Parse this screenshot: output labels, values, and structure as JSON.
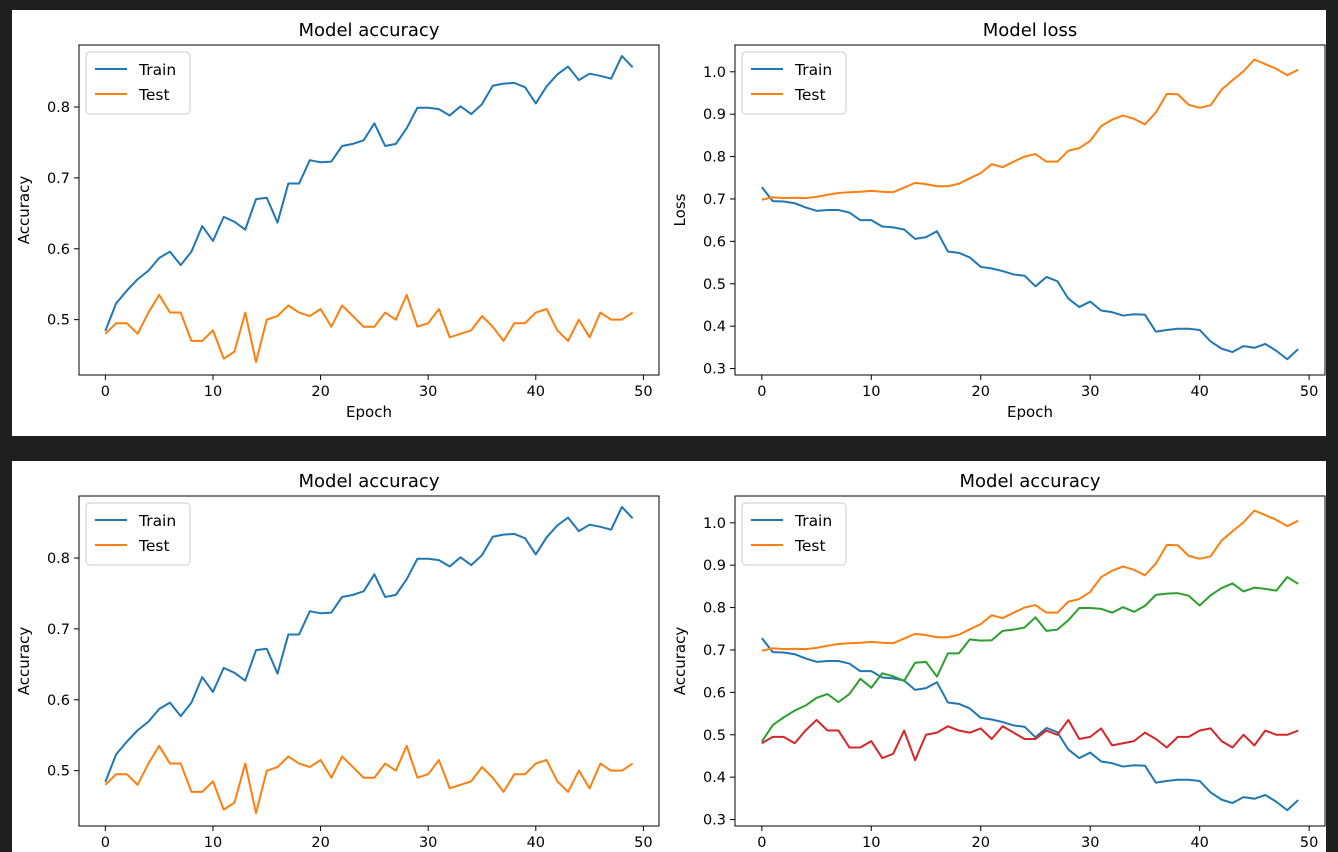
{
  "figures": [
    {
      "name": "figure-top",
      "charts": [
        0,
        1
      ]
    },
    {
      "name": "figure-bottom",
      "charts": [
        2,
        3
      ]
    }
  ],
  "series_colors": {
    "blue": "#1f77b4",
    "orange": "#ff7f0e",
    "green": "#2ca02c",
    "red": "#d62728"
  },
  "chart_data": [
    {
      "type": "line",
      "title": "Model accuracy",
      "xlabel": "Epoch",
      "ylabel": "Accuracy",
      "xlim": [
        -2.45,
        51.45
      ],
      "ylim": [
        0.4219,
        0.8875
      ],
      "xticks": [
        0,
        10,
        20,
        30,
        40,
        50
      ],
      "yticks": [
        0.5,
        0.6,
        0.7,
        0.8
      ],
      "legend": "top-left",
      "grid": false,
      "series": [
        {
          "name": "Train",
          "color": "#1f77b4",
          "values": [
            0.484,
            0.523,
            0.541,
            0.557,
            0.569,
            0.587,
            0.596,
            0.577,
            0.596,
            0.632,
            0.611,
            0.645,
            0.638,
            0.627,
            0.67,
            0.672,
            0.637,
            0.692,
            0.692,
            0.725,
            0.722,
            0.723,
            0.745,
            0.748,
            0.753,
            0.777,
            0.745,
            0.748,
            0.77,
            0.799,
            0.799,
            0.797,
            0.788,
            0.801,
            0.79,
            0.804,
            0.83,
            0.833,
            0.834,
            0.828,
            0.805,
            0.829,
            0.846,
            0.857,
            0.838,
            0.847,
            0.844,
            0.84,
            0.872,
            0.856
          ]
        },
        {
          "name": "Test",
          "color": "#ff7f0e",
          "values": [
            0.48,
            0.495,
            0.495,
            0.48,
            0.51,
            0.535,
            0.51,
            0.51,
            0.47,
            0.47,
            0.485,
            0.445,
            0.455,
            0.51,
            0.44,
            0.5,
            0.505,
            0.52,
            0.51,
            0.505,
            0.515,
            0.49,
            0.52,
            0.505,
            0.49,
            0.49,
            0.51,
            0.5,
            0.535,
            0.49,
            0.495,
            0.515,
            0.475,
            0.48,
            0.485,
            0.505,
            0.49,
            0.47,
            0.495,
            0.495,
            0.51,
            0.515,
            0.485,
            0.47,
            0.5,
            0.475,
            0.51,
            0.5,
            0.5,
            0.51
          ]
        }
      ]
    },
    {
      "type": "line",
      "title": "Model loss",
      "xlabel": "Epoch",
      "ylabel": "Loss",
      "xlim": [
        -2.45,
        51.45
      ],
      "ylim": [
        0.2848,
        1.0632
      ],
      "xticks": [
        0,
        10,
        20,
        30,
        40,
        50
      ],
      "yticks": [
        0.3,
        0.4,
        0.5,
        0.6,
        0.7,
        0.8,
        0.9,
        1.0
      ],
      "legend": "top-left",
      "grid": false,
      "series": [
        {
          "name": "Train",
          "color": "#1f77b4",
          "values": [
            0.728,
            0.695,
            0.694,
            0.69,
            0.68,
            0.672,
            0.674,
            0.674,
            0.668,
            0.65,
            0.65,
            0.635,
            0.633,
            0.628,
            0.606,
            0.61,
            0.624,
            0.576,
            0.573,
            0.562,
            0.54,
            0.536,
            0.53,
            0.522,
            0.519,
            0.494,
            0.516,
            0.506,
            0.465,
            0.445,
            0.458,
            0.437,
            0.433,
            0.425,
            0.428,
            0.427,
            0.387,
            0.391,
            0.394,
            0.394,
            0.391,
            0.364,
            0.347,
            0.339,
            0.353,
            0.349,
            0.358,
            0.342,
            0.322,
            0.346
          ]
        },
        {
          "name": "Test",
          "color": "#ff7f0e",
          "values": [
            0.698,
            0.704,
            0.702,
            0.703,
            0.702,
            0.705,
            0.71,
            0.714,
            0.716,
            0.717,
            0.719,
            0.717,
            0.716,
            0.727,
            0.738,
            0.735,
            0.73,
            0.73,
            0.736,
            0.749,
            0.761,
            0.782,
            0.775,
            0.788,
            0.8,
            0.806,
            0.788,
            0.788,
            0.814,
            0.82,
            0.837,
            0.872,
            0.887,
            0.897,
            0.889,
            0.876,
            0.904,
            0.948,
            0.947,
            0.922,
            0.915,
            0.921,
            0.958,
            0.98,
            1.001,
            1.029,
            1.018,
            1.007,
            0.992,
            1.005
          ]
        }
      ]
    },
    {
      "type": "line",
      "title": "Model accuracy",
      "xlabel": "",
      "ylabel": "Accuracy",
      "xlim": [
        -2.45,
        51.45
      ],
      "ylim": [
        0.4219,
        0.8875
      ],
      "xticks": [
        0,
        10,
        20,
        30,
        40,
        50
      ],
      "yticks": [
        0.5,
        0.6,
        0.7,
        0.8
      ],
      "legend": "top-left",
      "grid": false,
      "series": [
        {
          "name": "Train",
          "color": "#1f77b4",
          "values": [
            0.484,
            0.523,
            0.541,
            0.557,
            0.569,
            0.587,
            0.596,
            0.577,
            0.596,
            0.632,
            0.611,
            0.645,
            0.638,
            0.627,
            0.67,
            0.672,
            0.637,
            0.692,
            0.692,
            0.725,
            0.722,
            0.723,
            0.745,
            0.748,
            0.753,
            0.777,
            0.745,
            0.748,
            0.77,
            0.799,
            0.799,
            0.797,
            0.788,
            0.801,
            0.79,
            0.804,
            0.83,
            0.833,
            0.834,
            0.828,
            0.805,
            0.829,
            0.846,
            0.857,
            0.838,
            0.847,
            0.844,
            0.84,
            0.872,
            0.856
          ]
        },
        {
          "name": "Test",
          "color": "#ff7f0e",
          "values": [
            0.48,
            0.495,
            0.495,
            0.48,
            0.51,
            0.535,
            0.51,
            0.51,
            0.47,
            0.47,
            0.485,
            0.445,
            0.455,
            0.51,
            0.44,
            0.5,
            0.505,
            0.52,
            0.51,
            0.505,
            0.515,
            0.49,
            0.52,
            0.505,
            0.49,
            0.49,
            0.51,
            0.5,
            0.535,
            0.49,
            0.495,
            0.515,
            0.475,
            0.48,
            0.485,
            0.505,
            0.49,
            0.47,
            0.495,
            0.495,
            0.51,
            0.515,
            0.485,
            0.47,
            0.5,
            0.475,
            0.51,
            0.5,
            0.5,
            0.51
          ]
        }
      ]
    },
    {
      "type": "line",
      "title": "Model accuracy",
      "xlabel": "",
      "ylabel": "Accuracy",
      "xlim": [
        -2.45,
        51.45
      ],
      "ylim": [
        0.2848,
        1.0632
      ],
      "xticks": [
        0,
        10,
        20,
        30,
        40,
        50
      ],
      "yticks": [
        0.3,
        0.4,
        0.5,
        0.6,
        0.7,
        0.8,
        0.9,
        1.0
      ],
      "legend": "top-left",
      "grid": false,
      "series": [
        {
          "name": "Train",
          "color": "#1f77b4",
          "values": [
            0.728,
            0.695,
            0.694,
            0.69,
            0.68,
            0.672,
            0.674,
            0.674,
            0.668,
            0.65,
            0.65,
            0.635,
            0.633,
            0.628,
            0.606,
            0.61,
            0.624,
            0.576,
            0.573,
            0.562,
            0.54,
            0.536,
            0.53,
            0.522,
            0.519,
            0.494,
            0.516,
            0.506,
            0.465,
            0.445,
            0.458,
            0.437,
            0.433,
            0.425,
            0.428,
            0.427,
            0.387,
            0.391,
            0.394,
            0.394,
            0.391,
            0.364,
            0.347,
            0.339,
            0.353,
            0.349,
            0.358,
            0.342,
            0.322,
            0.346
          ]
        },
        {
          "name": "Test",
          "color": "#ff7f0e",
          "values": [
            0.698,
            0.704,
            0.702,
            0.703,
            0.702,
            0.705,
            0.71,
            0.714,
            0.716,
            0.717,
            0.719,
            0.717,
            0.716,
            0.727,
            0.738,
            0.735,
            0.73,
            0.73,
            0.736,
            0.749,
            0.761,
            0.782,
            0.775,
            0.788,
            0.8,
            0.806,
            0.788,
            0.788,
            0.814,
            0.82,
            0.837,
            0.872,
            0.887,
            0.897,
            0.889,
            0.876,
            0.904,
            0.948,
            0.947,
            0.922,
            0.915,
            0.921,
            0.958,
            0.98,
            1.001,
            1.029,
            1.018,
            1.007,
            0.992,
            1.005
          ]
        },
        {
          "color": "#2ca02c",
          "values": [
            0.484,
            0.523,
            0.541,
            0.557,
            0.569,
            0.587,
            0.596,
            0.577,
            0.596,
            0.632,
            0.611,
            0.645,
            0.638,
            0.627,
            0.67,
            0.672,
            0.637,
            0.692,
            0.692,
            0.725,
            0.722,
            0.723,
            0.745,
            0.748,
            0.753,
            0.777,
            0.745,
            0.748,
            0.77,
            0.799,
            0.799,
            0.797,
            0.788,
            0.801,
            0.79,
            0.804,
            0.83,
            0.833,
            0.834,
            0.828,
            0.805,
            0.829,
            0.846,
            0.857,
            0.838,
            0.847,
            0.844,
            0.84,
            0.872,
            0.856
          ]
        },
        {
          "color": "#d62728",
          "values": [
            0.48,
            0.495,
            0.495,
            0.48,
            0.51,
            0.535,
            0.51,
            0.51,
            0.47,
            0.47,
            0.485,
            0.445,
            0.455,
            0.51,
            0.44,
            0.5,
            0.505,
            0.52,
            0.51,
            0.505,
            0.515,
            0.49,
            0.52,
            0.505,
            0.49,
            0.49,
            0.51,
            0.5,
            0.535,
            0.49,
            0.495,
            0.515,
            0.475,
            0.48,
            0.485,
            0.505,
            0.49,
            0.47,
            0.495,
            0.495,
            0.51,
            0.515,
            0.485,
            0.47,
            0.5,
            0.475,
            0.51,
            0.5,
            0.5,
            0.51
          ]
        }
      ]
    }
  ]
}
